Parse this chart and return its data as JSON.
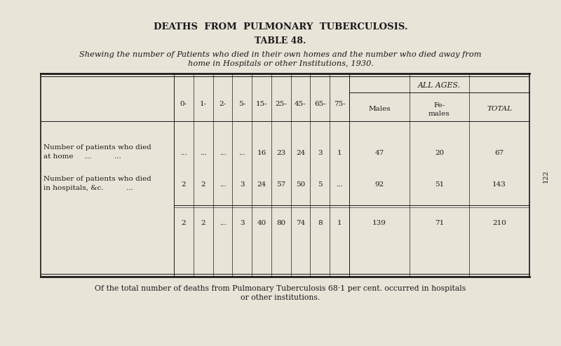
{
  "title": "DEATHS  FROM  PULMONARY  TUBERCULOSIS.",
  "subtitle": "TABLE 48.",
  "description_line1": "Shewing the number of Patients who died in their own homes and the number who died away from",
  "description_line2": "home in Hospitals or other Institutions, 1930.",
  "age_cols": [
    "0-",
    "1-",
    "2-",
    "5-",
    "15-",
    "25-",
    "45-",
    "65-",
    "75-"
  ],
  "row1_label_line1": "Number of patients who died",
  "row1_label_line2": "at home     ...          ...",
  "row2_label_line1": "Number of patients who died",
  "row2_label_line2": "in hospitals, &c.          ...",
  "row1_age_data": [
    "...",
    "...",
    "...",
    "...",
    "16",
    "23",
    "24",
    "3",
    "1"
  ],
  "row2_age_data": [
    "2",
    "2",
    "...",
    "3",
    "24",
    "57",
    "50",
    "5",
    "..."
  ],
  "total_age_data": [
    "2",
    "2",
    "...",
    "3",
    "40",
    "80",
    "74",
    "8",
    "1"
  ],
  "row1_all_ages": [
    "47",
    "20",
    "67"
  ],
  "row2_all_ages": [
    "92",
    "51",
    "143"
  ],
  "total_all_ages": [
    "139",
    "71",
    "210"
  ],
  "footer_line1": "Of the total number of deaths from Pulmonary Tuberculosis 68·1 per cent. occurred in hospitals",
  "footer_line2": "or other institutions.",
  "bg_color": "#e8e4d8",
  "text_color": "#1a1a1a",
  "page_num": "122"
}
